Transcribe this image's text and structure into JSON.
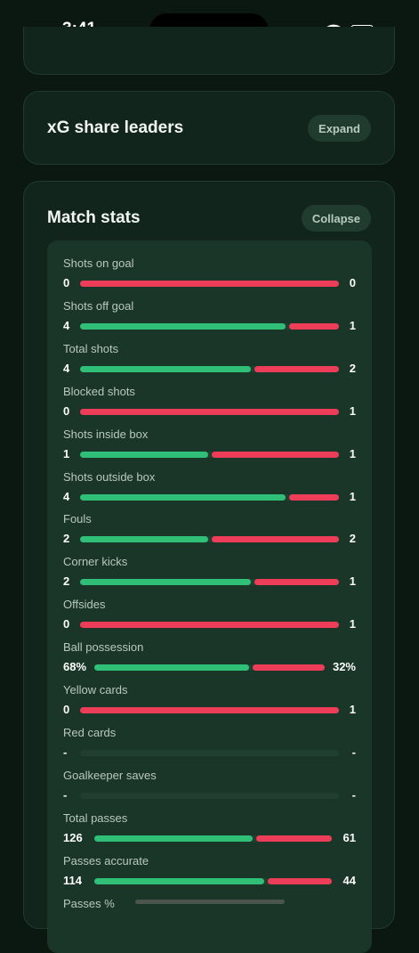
{
  "status_bar": {
    "time": "3:41"
  },
  "cards": {
    "xg": {
      "title": "xG share leaders",
      "button": "Expand"
    },
    "match": {
      "title": "Match stats",
      "button": "Collapse"
    }
  },
  "colors": {
    "home": "#2fbf77",
    "away": "#ee3d58",
    "track": "#213f30"
  },
  "stats": [
    {
      "label": "Shots on goal",
      "home": "0",
      "away": "0",
      "home_share": 0
    },
    {
      "label": "Shots off goal",
      "home": "4",
      "away": "1",
      "home_share": 0.8
    },
    {
      "label": "Total shots",
      "home": "4",
      "away": "2",
      "home_share": 0.667
    },
    {
      "label": "Blocked shots",
      "home": "0",
      "away": "1",
      "home_share": 0
    },
    {
      "label": "Shots inside box",
      "home": "1",
      "away": "1",
      "home_share": 0.5
    },
    {
      "label": "Shots outside box",
      "home": "4",
      "away": "1",
      "home_share": 0.8
    },
    {
      "label": "Fouls",
      "home": "2",
      "away": "2",
      "home_share": 0.5
    },
    {
      "label": "Corner kicks",
      "home": "2",
      "away": "1",
      "home_share": 0.667
    },
    {
      "label": "Offsides",
      "home": "0",
      "away": "1",
      "home_share": 0
    },
    {
      "label": "Ball possession",
      "home": "68%",
      "away": "32%",
      "home_share": 0.68
    },
    {
      "label": "Yellow cards",
      "home": "0",
      "away": "1",
      "home_share": 0
    },
    {
      "label": "Red cards",
      "home": "-",
      "away": "-",
      "home_share": null
    },
    {
      "label": "Goalkeeper saves",
      "home": "-",
      "away": "-",
      "home_share": null
    },
    {
      "label": "Total passes",
      "home": "126",
      "away": "61",
      "home_share": 0.674
    },
    {
      "label": "Passes accurate",
      "home": "114",
      "away": "44",
      "home_share": 0.722
    },
    {
      "label": "Passes %",
      "home": "",
      "away": "",
      "home_share": null
    }
  ]
}
